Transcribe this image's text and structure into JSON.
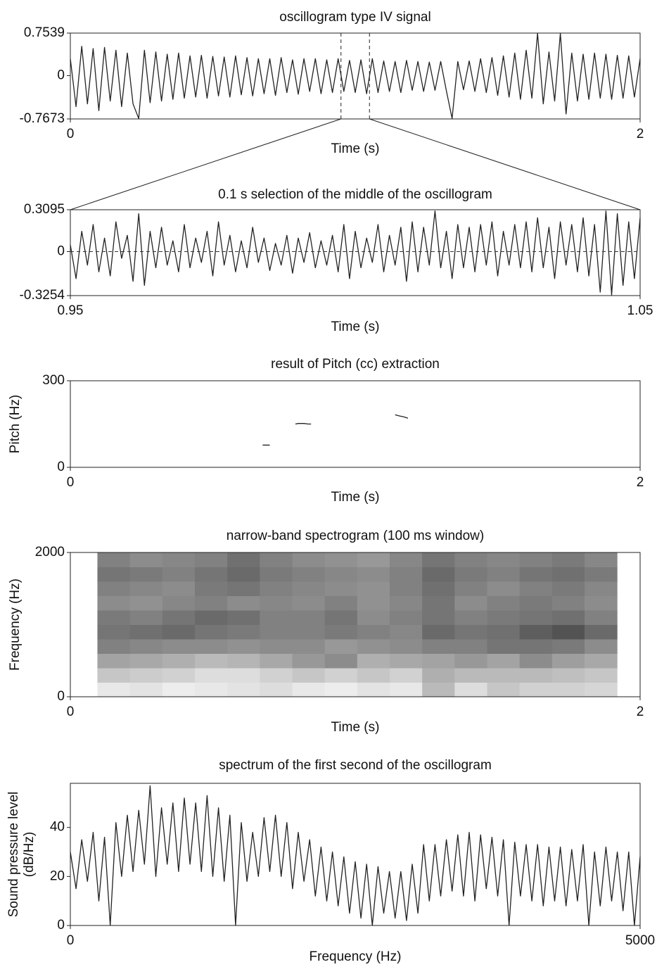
{
  "chart_data": [
    {
      "type": "line",
      "title": "oscillogram type IV signal",
      "xlabel": "Time (s)",
      "xlim": [
        0,
        2
      ],
      "xticks": [
        0,
        2
      ],
      "ylim": [
        -0.7673,
        0.7539
      ],
      "yticks": [
        -0.7673,
        0,
        0.7539
      ],
      "selection": [
        0.95,
        1.05
      ],
      "series": [
        {
          "color": "#222222",
          "x": [
            0,
            0.02,
            0.04,
            0.06,
            0.08,
            0.1,
            0.12,
            0.14,
            0.16,
            0.18,
            0.2,
            0.22,
            0.24,
            0.26,
            0.28,
            0.3,
            0.32,
            0.34,
            0.36,
            0.38,
            0.4,
            0.42,
            0.44,
            0.46,
            0.48,
            0.5,
            0.52,
            0.54,
            0.56,
            0.58,
            0.6,
            0.62,
            0.64,
            0.66,
            0.68,
            0.7,
            0.72,
            0.74,
            0.76,
            0.78,
            0.8,
            0.82,
            0.84,
            0.86,
            0.88,
            0.9,
            0.92,
            0.94,
            0.96,
            0.98,
            1,
            1.02,
            1.04,
            1.06,
            1.08,
            1.1,
            1.12,
            1.14,
            1.16,
            1.18,
            1.2,
            1.22,
            1.24,
            1.26,
            1.28,
            1.3,
            1.32,
            1.34,
            1.36,
            1.38,
            1.4,
            1.42,
            1.44,
            1.46,
            1.48,
            1.5,
            1.52,
            1.54,
            1.56,
            1.58,
            1.6,
            1.62,
            1.64,
            1.66,
            1.68,
            1.7,
            1.72,
            1.74,
            1.76,
            1.78,
            1.8,
            1.82,
            1.84,
            1.86,
            1.88,
            1.9,
            1.92,
            1.94,
            1.96,
            1.98,
            2
          ],
          "values": [
            0.3,
            -0.55,
            0.52,
            -0.5,
            0.48,
            -0.62,
            0.5,
            -0.45,
            0.45,
            -0.55,
            0.4,
            -0.5,
            -0.76,
            0.45,
            -0.48,
            0.42,
            -0.45,
            0.38,
            -0.42,
            0.4,
            -0.4,
            0.35,
            -0.38,
            0.36,
            -0.4,
            0.34,
            -0.36,
            0.33,
            -0.38,
            0.35,
            -0.34,
            0.32,
            -0.36,
            0.3,
            -0.32,
            0.3,
            -0.35,
            0.32,
            -0.3,
            0.28,
            -0.33,
            0.3,
            -0.28,
            0.3,
            -0.32,
            0.28,
            -0.3,
            0.3,
            -0.28,
            0.27,
            -0.3,
            0.28,
            -0.32,
            0.3,
            -0.3,
            0.26,
            -0.28,
            0.25,
            -0.3,
            0.27,
            -0.26,
            0.25,
            -0.28,
            0.24,
            -0.26,
            0.25,
            -0.27,
            -0.76,
            0.25,
            -0.25,
            0.26,
            -0.28,
            0.3,
            -0.3,
            0.32,
            -0.35,
            0.35,
            -0.38,
            0.4,
            -0.42,
            0.45,
            -0.4,
            0.75,
            -0.5,
            0.42,
            -0.45,
            0.75,
            -0.68,
            0.4,
            -0.45,
            0.38,
            -0.42,
            0.4,
            -0.4,
            0.38,
            -0.42,
            0.36,
            -0.4,
            0.35,
            -0.38,
            0.3
          ]
        }
      ]
    },
    {
      "type": "line",
      "title": "0.1 s selection of the middle of the oscillogram",
      "xlabel": "Time (s)",
      "xlim": [
        0.95,
        1.05
      ],
      "xticks": [
        0.95,
        1.05
      ],
      "ylim": [
        -0.3254,
        0.3095
      ],
      "yticks": [
        -0.3254,
        0,
        0.3095
      ],
      "reference_line": 0,
      "series": [
        {
          "color": "#222222",
          "x": [
            0.95,
            0.951,
            0.952,
            0.953,
            0.954,
            0.955,
            0.956,
            0.957,
            0.958,
            0.959,
            0.96,
            0.961,
            0.962,
            0.963,
            0.964,
            0.965,
            0.966,
            0.967,
            0.968,
            0.969,
            0.97,
            0.971,
            0.972,
            0.973,
            0.974,
            0.975,
            0.976,
            0.977,
            0.978,
            0.979,
            0.98,
            0.981,
            0.982,
            0.983,
            0.984,
            0.985,
            0.986,
            0.987,
            0.988,
            0.989,
            0.99,
            0.991,
            0.992,
            0.993,
            0.994,
            0.995,
            0.996,
            0.997,
            0.998,
            0.999,
            1,
            1.001,
            1.002,
            1.003,
            1.004,
            1.005,
            1.006,
            1.007,
            1.008,
            1.009,
            1.01,
            1.011,
            1.012,
            1.013,
            1.014,
            1.015,
            1.016,
            1.017,
            1.018,
            1.019,
            1.02,
            1.021,
            1.022,
            1.023,
            1.024,
            1.025,
            1.026,
            1.027,
            1.028,
            1.029,
            1.03,
            1.031,
            1.032,
            1.033,
            1.034,
            1.035,
            1.036,
            1.037,
            1.038,
            1.039,
            1.04,
            1.041,
            1.042,
            1.043,
            1.044,
            1.045,
            1.046,
            1.047,
            1.048,
            1.049,
            1.05
          ],
          "values": [
            0.05,
            -0.2,
            0.15,
            -0.1,
            0.2,
            -0.15,
            0.1,
            -0.18,
            0.22,
            -0.05,
            0.12,
            -0.22,
            0.28,
            -0.25,
            0.15,
            -0.12,
            0.18,
            -0.1,
            0.08,
            -0.15,
            0.2,
            -0.12,
            0.1,
            -0.08,
            0.15,
            -0.18,
            0.22,
            -0.1,
            0.12,
            -0.15,
            0.08,
            -0.12,
            0.18,
            -0.08,
            0.1,
            -0.14,
            0.06,
            -0.1,
            0.12,
            -0.16,
            0.1,
            -0.08,
            0.14,
            -0.12,
            0.08,
            -0.1,
            0.12,
            -0.15,
            0.2,
            -0.2,
            0.15,
            -0.12,
            0.1,
            -0.08,
            0.2,
            -0.15,
            0.12,
            -0.1,
            0.18,
            -0.22,
            0.22,
            -0.15,
            0.18,
            -0.1,
            0.3,
            -0.12,
            0.15,
            -0.2,
            0.2,
            -0.12,
            0.18,
            -0.15,
            0.2,
            -0.1,
            0.22,
            -0.18,
            0.15,
            -0.1,
            0.2,
            -0.12,
            0.22,
            -0.15,
            0.25,
            -0.12,
            0.18,
            -0.2,
            0.22,
            -0.1,
            0.2,
            -0.15,
            0.25,
            -0.18,
            0.2,
            -0.3,
            0.3,
            -0.32,
            0.28,
            -0.25,
            0.22,
            -0.2,
            0.25
          ]
        }
      ]
    },
    {
      "type": "line",
      "title": "result of Pitch (cc) extraction",
      "xlabel": "Time (s)",
      "ylabel": "Pitch (Hz)",
      "xlim": [
        0,
        2
      ],
      "xticks": [
        0,
        2
      ],
      "ylim": [
        0,
        300
      ],
      "yticks": [
        0,
        300
      ],
      "series": [
        {
          "color": "#222222",
          "x": [
            0.675,
            0.7,
            0.705,
            0.79,
            0.8,
            0.82,
            0.835,
            0.845,
            0.85,
            1.14,
            1.155,
            1.17,
            1.185
          ],
          "values": [
            77,
            77,
            null,
            150,
            152,
            152,
            150,
            150,
            null,
            182,
            178,
            175,
            170
          ]
        }
      ]
    },
    {
      "type": "heatmap",
      "title": "narrow-band spectrogram (100 ms window)",
      "xlabel": "Time (s)",
      "ylabel": "Frequency (Hz)",
      "xlim": [
        0,
        2
      ],
      "xticks": [
        0,
        2
      ],
      "ylim": [
        0,
        2000
      ],
      "yticks": [
        0,
        2000
      ],
      "x": [
        0.152,
        0.266,
        0.38,
        0.494,
        0.608,
        0.722,
        0.836,
        0.95,
        1.064,
        1.178,
        1.292,
        1.406,
        1.52,
        1.634,
        1.748,
        1.862
      ],
      "y": [
        100,
        300,
        500,
        700,
        900,
        1100,
        1300,
        1500,
        1700,
        1900
      ],
      "z": [
        [
          10,
          12,
          8,
          10,
          12,
          15,
          10,
          8,
          12,
          10,
          30,
          15,
          25,
          20,
          20,
          18
        ],
        [
          25,
          22,
          20,
          15,
          15,
          20,
          25,
          20,
          25,
          20,
          35,
          30,
          30,
          30,
          28,
          25
        ],
        [
          40,
          38,
          35,
          30,
          32,
          38,
          45,
          50,
          35,
          38,
          40,
          45,
          40,
          50,
          42,
          38
        ],
        [
          55,
          52,
          50,
          50,
          48,
          50,
          50,
          45,
          48,
          50,
          55,
          55,
          60,
          60,
          58,
          50
        ],
        [
          60,
          62,
          65,
          60,
          58,
          55,
          55,
          58,
          55,
          52,
          65,
          60,
          62,
          70,
          75,
          65
        ],
        [
          58,
          55,
          60,
          65,
          62,
          55,
          55,
          60,
          50,
          55,
          60,
          55,
          58,
          60,
          62,
          55
        ],
        [
          50,
          48,
          52,
          55,
          50,
          52,
          50,
          55,
          48,
          52,
          60,
          50,
          55,
          58,
          55,
          50
        ],
        [
          55,
          52,
          50,
          58,
          60,
          55,
          52,
          50,
          48,
          55,
          62,
          55,
          50,
          55,
          58,
          52
        ],
        [
          60,
          58,
          55,
          60,
          65,
          58,
          55,
          52,
          50,
          55,
          65,
          58,
          55,
          60,
          62,
          58
        ],
        [
          55,
          50,
          52,
          55,
          62,
          55,
          50,
          48,
          45,
          52,
          60,
          55,
          52,
          55,
          58,
          52
        ]
      ]
    },
    {
      "type": "line",
      "title": "spectrum of the first second of the oscillogram",
      "xlabel": "Frequency (Hz)",
      "ylabel": [
        "Sound pressure level",
        "(dB/Hz)"
      ],
      "xlim": [
        0,
        5000
      ],
      "xticks": [
        0,
        5000
      ],
      "ylim": [
        0,
        58
      ],
      "yticks": [
        0,
        20,
        40
      ],
      "series": [
        {
          "color": "#222222",
          "x": [
            0,
            50,
            100,
            150,
            200,
            250,
            300,
            350,
            400,
            450,
            500,
            550,
            600,
            650,
            700,
            750,
            800,
            850,
            900,
            950,
            1000,
            1050,
            1100,
            1150,
            1200,
            1250,
            1300,
            1350,
            1400,
            1450,
            1500,
            1550,
            1600,
            1650,
            1700,
            1750,
            1800,
            1850,
            1900,
            1950,
            2000,
            2050,
            2100,
            2150,
            2200,
            2250,
            2300,
            2350,
            2400,
            2450,
            2500,
            2550,
            2600,
            2650,
            2700,
            2750,
            2800,
            2850,
            2900,
            2950,
            3000,
            3050,
            3100,
            3150,
            3200,
            3250,
            3300,
            3350,
            3400,
            3450,
            3500,
            3550,
            3600,
            3650,
            3700,
            3750,
            3800,
            3850,
            3900,
            3950,
            4000,
            4050,
            4100,
            4150,
            4200,
            4250,
            4300,
            4350,
            4400,
            4450,
            4500,
            4550,
            4600,
            4650,
            4700,
            4750,
            4800,
            4850,
            4900,
            4950,
            5000
          ],
          "values": [
            30,
            15,
            35,
            18,
            38,
            10,
            36,
            0,
            42,
            20,
            45,
            22,
            47,
            25,
            57,
            20,
            48,
            25,
            50,
            22,
            52,
            25,
            50,
            22,
            53,
            20,
            48,
            18,
            45,
            0,
            42,
            18,
            38,
            20,
            44,
            22,
            45,
            20,
            42,
            15,
            38,
            18,
            35,
            12,
            32,
            10,
            30,
            8,
            28,
            5,
            26,
            3,
            25,
            0,
            24,
            5,
            22,
            3,
            22,
            2,
            25,
            5,
            33,
            10,
            33,
            12,
            35,
            14,
            37,
            12,
            38,
            10,
            37,
            15,
            36,
            12,
            35,
            0,
            34,
            12,
            33,
            10,
            33,
            8,
            32,
            10,
            32,
            8,
            31,
            10,
            33,
            0,
            30,
            8,
            32,
            10,
            30,
            6,
            30,
            0,
            28
          ]
        }
      ]
    }
  ]
}
